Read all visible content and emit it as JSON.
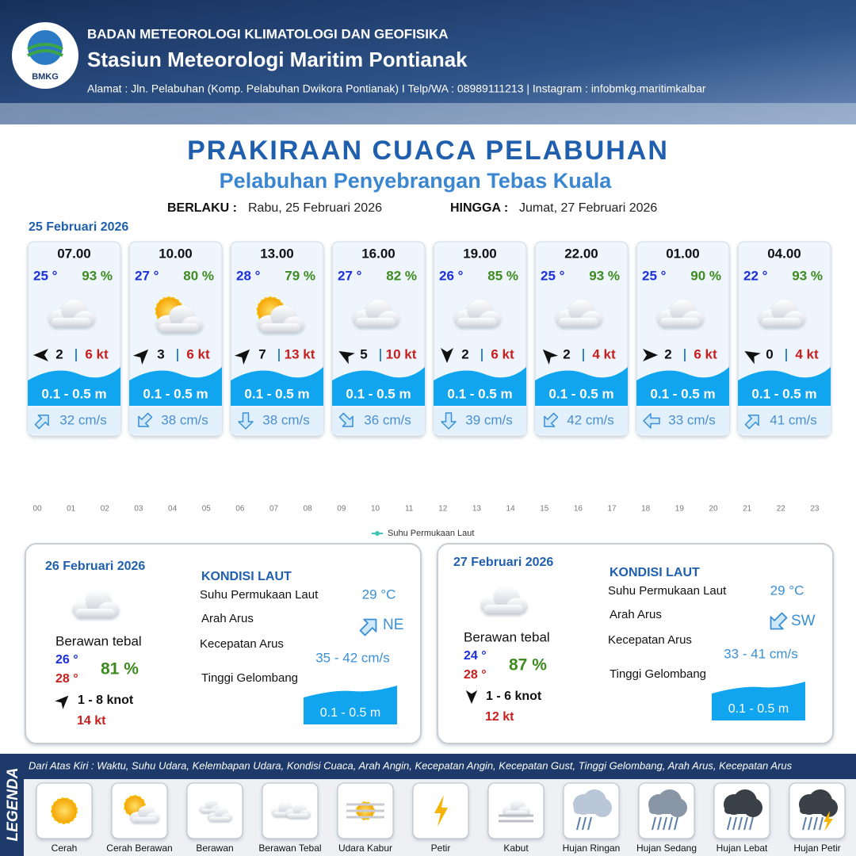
{
  "header": {
    "logo": "BMKG",
    "agency": "BADAN METEOROLOGI KLIMATOLOGI DAN GEOFISIKA",
    "station": "Stasiun Meteorologi Maritim Pontianak",
    "address": "Alamat : Jln. Pelabuhan (Komp. Pelabuhan Dwikora Pontianak) I Telp/WA : 08989111213 | Instagram : infobmkg.maritimkalbar"
  },
  "title": "PRAKIRAAN CUACA PELABUHAN",
  "subtitle": "Pelabuhan Penyebrangan Tebas Kuala",
  "validity": {
    "from_label": "BERLAKU :",
    "from": "Rabu, 25 Februari 2026",
    "to_label": "HINGGA :",
    "to": "Jumat, 27 Februari 2026"
  },
  "day1": {
    "date": "25 Februari 2026",
    "forecasts": [
      {
        "time": "07.00",
        "temp": "25 °",
        "humidity": "93 %",
        "wind_deg": 270,
        "wind": "2",
        "gust": "6 kt",
        "wave": "0.1 - 0.5 m",
        "current_deg": 45,
        "current": "32 cm/s"
      },
      {
        "time": "10.00",
        "temp": "27 °",
        "humidity": "80 %",
        "wind_deg": 45,
        "wind": "3",
        "gust": "6 kt",
        "wave": "0.1 - 0.5 m",
        "current_deg": 225,
        "current": "38 cm/s"
      },
      {
        "time": "13.00",
        "temp": "28 °",
        "humidity": "79 %",
        "wind_deg": 45,
        "wind": "7",
        "gust": "13 kt",
        "wave": "0.1 - 0.5 m",
        "current_deg": 180,
        "current": "38 cm/s"
      },
      {
        "time": "16.00",
        "temp": "27 °",
        "humidity": "82 %",
        "wind_deg": 300,
        "wind": "5",
        "gust": "10 kt",
        "wave": "0.1 - 0.5 m",
        "current_deg": 135,
        "current": "36 cm/s"
      },
      {
        "time": "19.00",
        "temp": "26 °",
        "humidity": "85 %",
        "wind_deg": 180,
        "wind": "2",
        "gust": "6 kt",
        "wave": "0.1 - 0.5 m",
        "current_deg": 180,
        "current": "39 cm/s"
      },
      {
        "time": "22.00",
        "temp": "25 °",
        "humidity": "93 %",
        "wind_deg": 315,
        "wind": "2",
        "gust": "4 kt",
        "wave": "0.1 - 0.5 m",
        "current_deg": 225,
        "current": "42 cm/s"
      },
      {
        "time": "01.00",
        "temp": "25 °",
        "humidity": "90 %",
        "wind_deg": 90,
        "wind": "2",
        "gust": "6 kt",
        "wave": "0.1 - 0.5 m",
        "current_deg": 270,
        "current": "33 cm/s"
      },
      {
        "time": "04.00",
        "temp": "22 °",
        "humidity": "93 %",
        "wind_deg": 300,
        "wind": "0",
        "gust": "4 kt",
        "wave": "0.1 - 0.5 m",
        "current_deg": 45,
        "current": "41 cm/s"
      }
    ]
  },
  "hourly_chart": {
    "ticks": [
      "00",
      "01",
      "02",
      "03",
      "04",
      "05",
      "06",
      "07",
      "08",
      "09",
      "10",
      "11",
      "12",
      "13",
      "14",
      "15",
      "16",
      "17",
      "18",
      "19",
      "20",
      "21",
      "22",
      "23"
    ],
    "legend": "Suhu Permukaan Laut"
  },
  "days": [
    {
      "date": "26 Februari 2026",
      "condition": "Berawan tebal",
      "temp_min": "26 °",
      "temp_max": "28 °",
      "humidity": "81 %",
      "wind_deg": 45,
      "wind": "1 - 8 knot",
      "gust": "14 kt",
      "sea": {
        "title": "KONDISI LAUT",
        "sst_label": "Suhu Permukaan Laut",
        "sst": "29 °C",
        "current_dir_label": "Arah Arus",
        "current_deg": 45,
        "current_dir": "NE",
        "current_speed_label": "Kecepatan Arus",
        "current_speed": "35 - 42 cm/s",
        "wave_label": "Tinggi Gelombang",
        "wave": "0.1 - 0.5 m"
      }
    },
    {
      "date": "27 Februari 2026",
      "condition": "Berawan tebal",
      "temp_min": "24 °",
      "temp_max": "28 °",
      "humidity": "87 %",
      "wind_deg": 180,
      "wind": "1 - 6 knot",
      "gust": "12 kt",
      "sea": {
        "title": "KONDISI LAUT",
        "sst_label": "Suhu Permukaan Laut",
        "sst": "29 °C",
        "current_dir_label": "Arah Arus",
        "current_deg": 225,
        "current_dir": "SW",
        "current_speed_label": "Kecepatan Arus",
        "current_speed": "33 - 41 cm/s",
        "wave_label": "Tinggi Gelombang",
        "wave": "0.1 - 0.5 m"
      }
    }
  ],
  "legend": {
    "title": "LEGENDA",
    "description": "Dari Atas Kiri : Waktu, Suhu Udara, Kelembapan Udara, Kondisi Cuaca, Arah Angin, Kecepatan Angin, Kecepatan Gust, Tinggi Gelombang, Arah Arus, Kecepatan Arus",
    "items": [
      "Cerah",
      "Cerah Berawan",
      "Berawan",
      "Berawan Tebal",
      "Udara Kabur",
      "Petir",
      "Kabut",
      "Hujan Ringan",
      "Hujan Sedang",
      "Hujan Lebat",
      "Hujan Petir"
    ]
  }
}
